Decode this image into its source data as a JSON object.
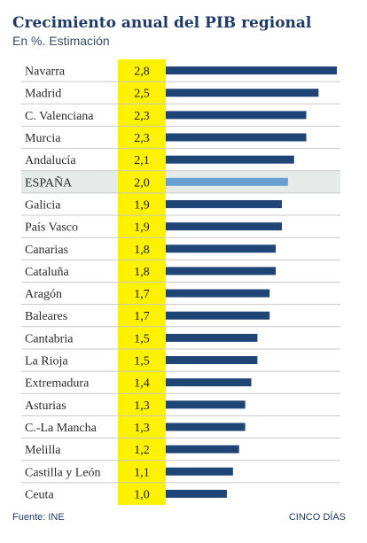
{
  "title": "Crecimiento anual del PIB regional",
  "subtitle": "En %. Estimación",
  "source": "Fuente: INE",
  "brand": "CINCO DÍAS",
  "colors": {
    "bar": "#1f4577",
    "highlight_bar": "#6a9fd3",
    "highlight_row": "#e6ebe9",
    "value_column": "#fff200",
    "row_line": "#c8c8c8",
    "label_text": "#2a2a2a"
  },
  "chart_data": {
    "type": "bar",
    "orientation": "horizontal",
    "title": "Crecimiento anual del PIB regional",
    "subtitle": "En %. Estimación",
    "categories": [
      "Navarra",
      "Madrid",
      "C. Valenciana",
      "Murcia",
      "Andalucía",
      "ESPAÑA",
      "Galicia",
      "País Vasco",
      "Canarias",
      "Cataluña",
      "Aragón",
      "Baleares",
      "Cantabria",
      "La Rioja",
      "Extremadura",
      "Asturias",
      "C.-La Mancha",
      "Melilla",
      "Castilla y León",
      "Ceuta"
    ],
    "values": [
      2.8,
      2.5,
      2.3,
      2.3,
      2.1,
      2.0,
      1.9,
      1.9,
      1.8,
      1.8,
      1.7,
      1.7,
      1.5,
      1.5,
      1.4,
      1.3,
      1.3,
      1.2,
      1.1,
      1.0
    ],
    "value_labels": [
      "2,8",
      "2,5",
      "2,3",
      "2,3",
      "2,1",
      "2,0",
      "1,9",
      "1,9",
      "1,8",
      "1,8",
      "1,7",
      "1,7",
      "1,5",
      "1,5",
      "1,4",
      "1,3",
      "1,3",
      "1,2",
      "1,1",
      "1,0"
    ],
    "highlight": "ESPAÑA",
    "xlim": [
      0,
      2.8
    ],
    "grid": false,
    "legend": "none"
  }
}
